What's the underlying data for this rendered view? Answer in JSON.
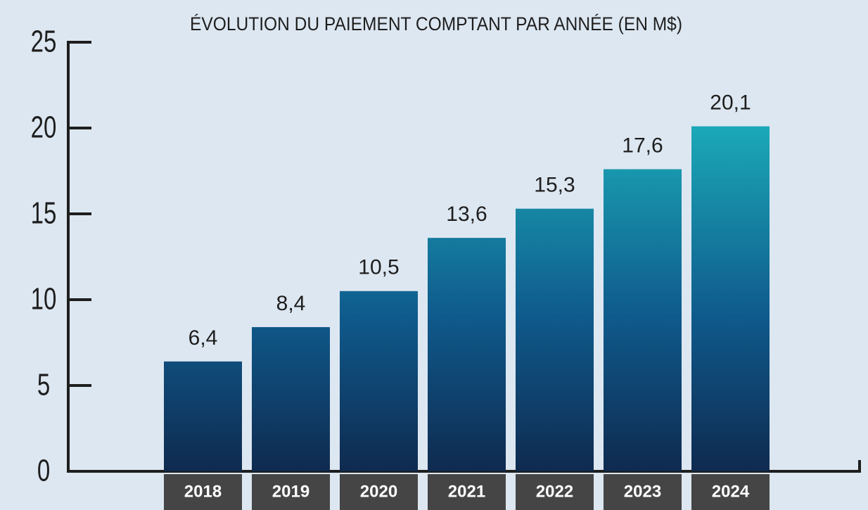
{
  "chart_data": {
    "type": "bar",
    "title": "ÉVOLUTION DU PAIEMENT COMPTANT PAR ANNÉE (EN M$)",
    "categories": [
      "2018",
      "2019",
      "2020",
      "2021",
      "2022",
      "2023",
      "2024"
    ],
    "values": [
      6.4,
      8.4,
      10.5,
      13.6,
      15.3,
      17.6,
      20.1
    ],
    "value_labels": [
      "6,4",
      "8,4",
      "10,5",
      "13,6",
      "15,3",
      "17,6",
      "20,1"
    ],
    "gradient": [
      "#1ba8b7",
      "#0f5a8c",
      "#0f2a4f"
    ],
    "ylim": [
      0,
      25
    ],
    "yticks": [
      0,
      5,
      10,
      15,
      20,
      25
    ],
    "grid": false
  }
}
